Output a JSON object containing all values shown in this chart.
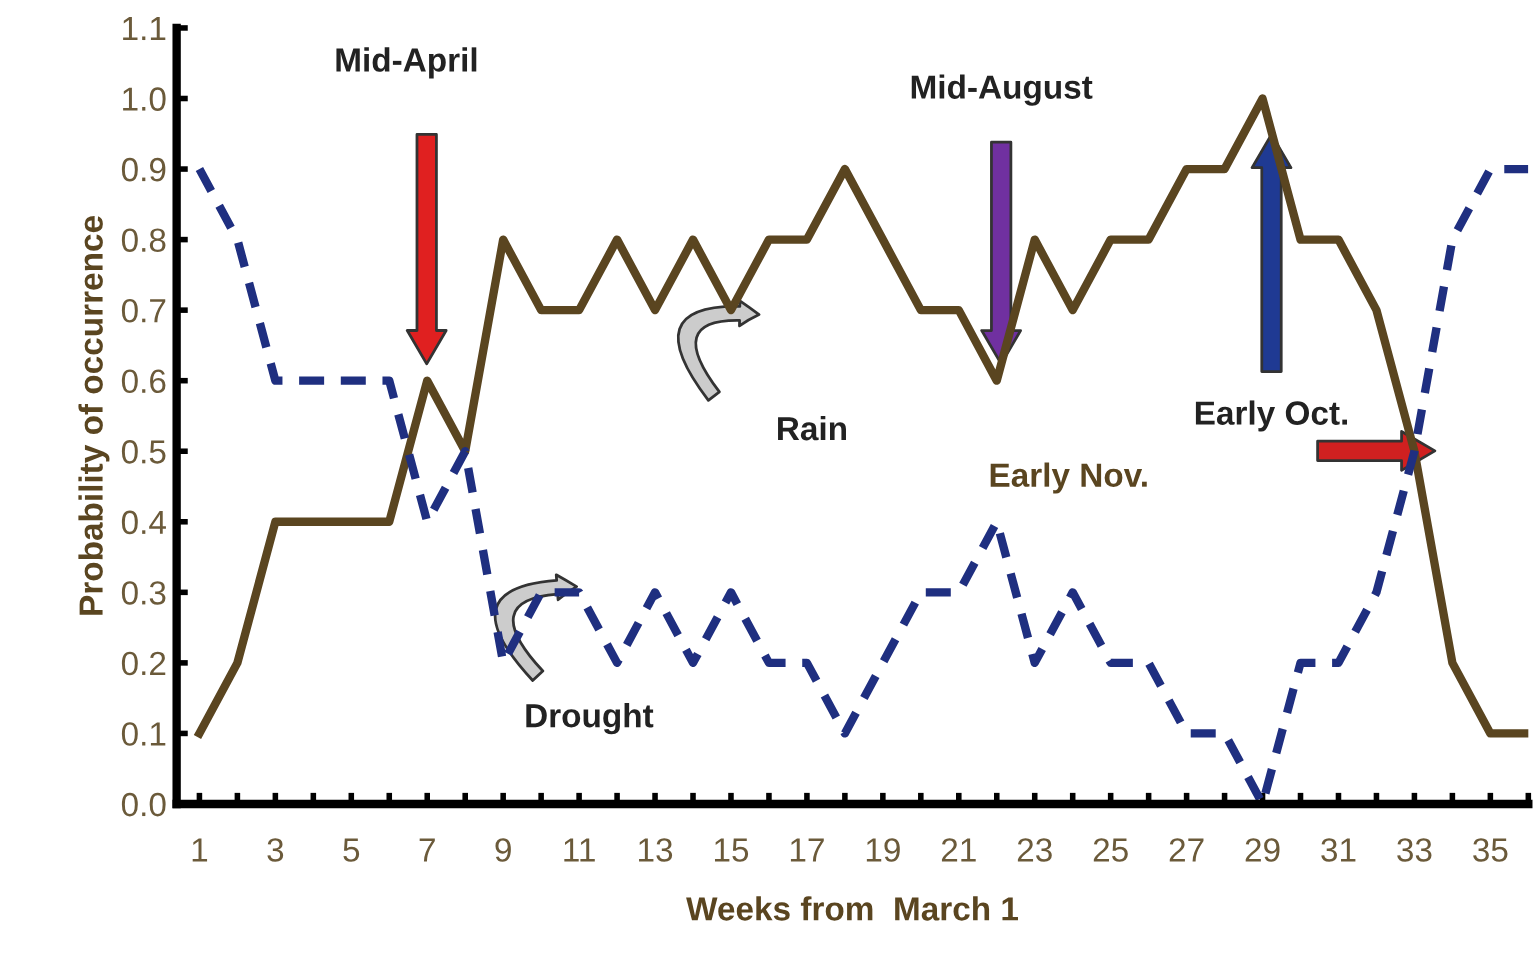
{
  "chart_data": {
    "type": "line",
    "xlabel": "Weeks from  March 1",
    "ylabel": "Probability of occurrence",
    "x": [
      1,
      2,
      3,
      4,
      5,
      6,
      7,
      8,
      9,
      10,
      11,
      12,
      13,
      14,
      15,
      16,
      17,
      18,
      19,
      20,
      21,
      22,
      23,
      24,
      25,
      26,
      27,
      28,
      29,
      30,
      31,
      32,
      33,
      34,
      35,
      36
    ],
    "series": [
      {
        "color": "#5a4520",
        "line_style": "solid",
        "values": [
          0.1,
          0.2,
          0.4,
          0.4,
          0.4,
          0.4,
          0.6,
          0.5,
          0.8,
          0.7,
          0.7,
          0.8,
          0.7,
          0.8,
          0.7,
          0.8,
          0.8,
          0.9,
          0.8,
          0.7,
          0.7,
          0.6,
          0.8,
          0.7,
          0.8,
          0.8,
          0.9,
          0.9,
          1.0,
          0.8,
          0.8,
          0.7,
          0.5,
          0.2,
          0.1,
          0.1
        ]
      },
      {
        "color": "#1f2f80",
        "line_style": "dashed",
        "values": [
          0.9,
          0.8,
          0.6,
          0.6,
          0.6,
          0.6,
          0.4,
          0.5,
          0.2,
          0.3,
          0.3,
          0.2,
          0.3,
          0.2,
          0.3,
          0.2,
          0.2,
          0.1,
          0.2,
          0.3,
          0.3,
          0.4,
          0.2,
          0.3,
          0.2,
          0.2,
          0.1,
          0.1,
          0.0,
          0.2,
          0.2,
          0.3,
          0.5,
          0.8,
          0.9,
          0.9
        ]
      }
    ],
    "xlim": [
      0.4,
      36
    ],
    "xticks": [
      1,
      {
        "value": 2,
        "label": null
      },
      3,
      {
        "value": 4,
        "label": null
      },
      5,
      {
        "value": 6,
        "label": null
      },
      7,
      {
        "value": 8,
        "label": null
      },
      9,
      {
        "value": 10,
        "label": null
      },
      11,
      {
        "value": 12,
        "label": null
      },
      13,
      {
        "value": 14,
        "label": null
      },
      15,
      {
        "value": 16,
        "label": null
      },
      17,
      {
        "value": 18,
        "label": null
      },
      19,
      {
        "value": 20,
        "label": null
      },
      21,
      {
        "value": 22,
        "label": null
      },
      23,
      {
        "value": 24,
        "label": null
      },
      25,
      {
        "value": 26,
        "label": null
      },
      27,
      {
        "value": 28,
        "label": null
      },
      29,
      {
        "value": 30,
        "label": null
      },
      31,
      {
        "value": 32,
        "label": null
      },
      33,
      {
        "value": 34,
        "label": null
      },
      35,
      {
        "value": 36,
        "label": null
      }
    ],
    "ylim": [
      0,
      1.1
    ],
    "yticks": [
      {
        "value": 0,
        "label": "0.0"
      },
      {
        "value": 0.1,
        "label": "0.1"
      },
      {
        "value": 0.2,
        "label": "0.2"
      },
      {
        "value": 0.3,
        "label": "0.3"
      },
      {
        "value": 0.4,
        "label": "0.4"
      },
      {
        "value": 0.5,
        "label": "0.5"
      },
      {
        "value": 0.6,
        "label": "0.6"
      },
      {
        "value": 0.7,
        "label": "0.7"
      },
      {
        "value": 0.8,
        "label": "0.8"
      },
      {
        "value": 0.9,
        "label": "0.9"
      },
      {
        "value": 1.0,
        "label": "1.0"
      },
      {
        "value": 1.1,
        "label": "1.1"
      }
    ],
    "grid": false,
    "legend": false,
    "marker": "none",
    "annotations": [
      "Mid-April",
      "Mid-August",
      "Early Oct.",
      "Early Nov.",
      "Rain",
      "Drought"
    ]
  }
}
